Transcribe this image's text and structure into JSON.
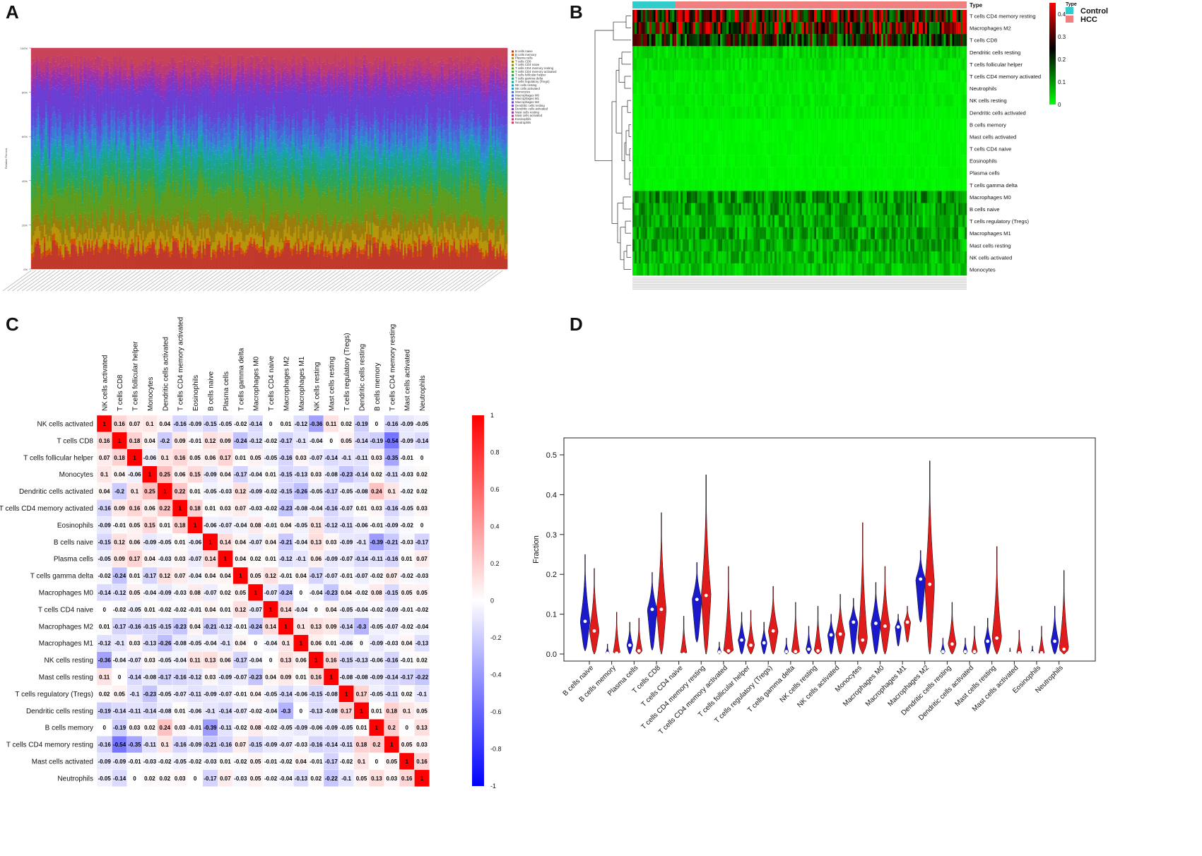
{
  "panels": {
    "a": "A",
    "b": "B",
    "c": "C",
    "d": "D"
  },
  "colors": {
    "corr_neg": "#0000ff",
    "corr_pos": "#ff0000",
    "violin_control": "#1a1acc",
    "violin_hcc": "#e01b1b",
    "heat_low": "#00ff00",
    "heat_mid": "#000000",
    "heat_high": "#ff0000",
    "type_control": "#33cccc",
    "type_hcc": "#f08080"
  },
  "cell_types": [
    "B cells naive",
    "B cells memory",
    "Plasma cells",
    "T cells CD8",
    "T cells CD4 naive",
    "T cells CD4 memory resting",
    "T cells CD4 memory activated",
    "T cells follicular helper",
    "T cells gamma delta",
    "T cells regulatory (Tregs)",
    "NK cells resting",
    "NK cells activated",
    "Monocytes",
    "Macrophages M0",
    "Macrophages M1",
    "Macrophages M2",
    "Dendritic cells resting",
    "Dendritic cells activated",
    "Mast cells resting",
    "Mast cells activated",
    "Eosinophils",
    "Neutrophils"
  ],
  "chart_data": [
    {
      "panel": "A",
      "type": "bar",
      "stacked": true,
      "ylabel": "Relative Percent",
      "yticks": [
        "0%",
        "20%",
        "40%",
        "60%",
        "80%",
        "100%"
      ],
      "legend": [
        "B cells naive",
        "B cells memory",
        "Plasma cells",
        "T cells CD8",
        "T cells CD4 naive",
        "T cells CD4 memory resting",
        "T cells CD4 memory activated",
        "T cells follicular helper",
        "T cells gamma delta",
        "T cells regulatory (Tregs)",
        "NK cells resting",
        "NK cells activated",
        "Monocytes",
        "Macrophages M0",
        "Macrophages M1",
        "Macrophages M2",
        "Dendritic cells resting",
        "Dendritic cells activated",
        "Mast cells resting",
        "Mast cells activated",
        "Eosinophils",
        "Neutrophils"
      ],
      "legend_colors": [
        "#c0392b",
        "#d35400",
        "#b7950b",
        "#9a7d0a",
        "#7d8f10",
        "#5e9c1e",
        "#3fa33a",
        "#2aa55a",
        "#1fa47a",
        "#1aa39a",
        "#1c9fb8",
        "#2a8fcc",
        "#3a7bd5",
        "#4a63d8",
        "#5a4ed8",
        "#6b3fd3",
        "#7d36c8",
        "#8e33b8",
        "#a033a4",
        "#b0368c",
        "#bd3b72",
        "#c84258"
      ]
    },
    {
      "panel": "B",
      "type": "heatmap",
      "annotation_label": "Type",
      "legend_title": "Type",
      "groups": [
        "Control",
        "HCC"
      ],
      "scale_ticks": [
        "0",
        "0.1",
        "0.2",
        "0.3",
        "0.4"
      ],
      "rows": [
        "T cells CD4 memory resting",
        "Macrophages M2",
        "T cells CD8",
        "Dendritic cells resting",
        "T cells follicular helper",
        "T cells CD4 memory activated",
        "Neutrophils",
        "NK cells resting",
        "Dendritic cells activated",
        "B cells memory",
        "Mast cells activated",
        "T cells CD4 naive",
        "Eosinophils",
        "Plasma cells",
        "T cells gamma delta",
        "Macrophages M0",
        "B cells naive",
        "T cells regulatory (Tregs)",
        "Macrophages M1",
        "Mast cells resting",
        "NK cells activated",
        "Monocytes"
      ]
    },
    {
      "panel": "C",
      "type": "heatmap",
      "title": "",
      "labels": [
        "NK cells activated",
        "T cells CD8",
        "T cells follicular helper",
        "Monocytes",
        "Dendritic cells activated",
        "T cells CD4 memory activated",
        "Eosinophils",
        "B cells naive",
        "Plasma cells",
        "T cells gamma delta",
        "Macrophages M0",
        "T cells CD4 naive",
        "Macrophages M2",
        "Macrophages M1",
        "NK cells resting",
        "Mast cells resting",
        "T cells regulatory (Tregs)",
        "Dendritic cells resting",
        "B cells memory",
        "T cells CD4 memory resting",
        "Mast cells activated",
        "Neutrophils"
      ],
      "colorbar_ticks": [
        "1",
        "0.8",
        "0.6",
        "0.4",
        "0.2",
        "0",
        "-0.2",
        "-0.4",
        "-0.6",
        "-0.8",
        "-1"
      ],
      "matrix": [
        [
          "1",
          "0.16",
          "0.07",
          "0.1",
          "0.04",
          "-0.16",
          "-0.09",
          "-0.15",
          "-0.05",
          "-0.02",
          "-0.14",
          "0",
          "0.01",
          "-0.12",
          "-0.36",
          "0.11",
          "0.02",
          "-0.19",
          "0",
          "-0.16",
          "-0.09",
          "-0.05"
        ],
        [
          "0.16",
          "1",
          "0.18",
          "0.04",
          "-0.2",
          "0.09",
          "-0.01",
          "0.12",
          "0.09",
          "-0.24",
          "-0.12",
          "-0.02",
          "-0.17",
          "-0.1",
          "-0.04",
          "0",
          "0.05",
          "-0.14",
          "-0.19",
          "-0.54",
          "-0.09",
          "-0.14"
        ],
        [
          "0.07",
          "0.18",
          "1",
          "-0.06",
          "0.1",
          "0.16",
          "0.05",
          "0.06",
          "0.17",
          "0.01",
          "0.05",
          "-0.05",
          "-0.16",
          "0.03",
          "-0.07",
          "-0.14",
          "-0.1",
          "-0.11",
          "0.03",
          "-0.35",
          "-0.01",
          "0"
        ],
        [
          "0.1",
          "0.04",
          "-0.06",
          "1",
          "0.25",
          "0.06",
          "0.15",
          "-0.09",
          "0.04",
          "-0.17",
          "-0.04",
          "0.01",
          "-0.15",
          "-0.13",
          "0.03",
          "-0.08",
          "-0.23",
          "-0.14",
          "0.02",
          "-0.11",
          "-0.03",
          "0.02"
        ],
        [
          "0.04",
          "-0.2",
          "0.1",
          "0.25",
          "1",
          "0.22",
          "0.01",
          "-0.05",
          "-0.03",
          "0.12",
          "-0.09",
          "-0.02",
          "-0.15",
          "-0.26",
          "-0.05",
          "-0.17",
          "-0.05",
          "-0.08",
          "0.24",
          "0.1",
          "-0.02",
          "0.02"
        ],
        [
          "-0.16",
          "0.09",
          "0.16",
          "0.06",
          "0.22",
          "1",
          "0.18",
          "0.01",
          "0.03",
          "0.07",
          "-0.03",
          "-0.02",
          "-0.23",
          "-0.08",
          "-0.04",
          "-0.16",
          "-0.07",
          "0.01",
          "0.03",
          "-0.16",
          "-0.05",
          "0.03"
        ],
        [
          "-0.09",
          "-0.01",
          "0.05",
          "0.15",
          "0.01",
          "0.18",
          "1",
          "-0.06",
          "-0.07",
          "-0.04",
          "0.08",
          "-0.01",
          "0.04",
          "-0.05",
          "0.11",
          "-0.12",
          "-0.11",
          "-0.06",
          "-0.01",
          "-0.09",
          "-0.02",
          "0"
        ],
        [
          "-0.15",
          "0.12",
          "0.06",
          "-0.09",
          "-0.05",
          "0.01",
          "-0.06",
          "1",
          "0.14",
          "0.04",
          "-0.07",
          "0.04",
          "-0.21",
          "-0.04",
          "0.13",
          "0.03",
          "-0.09",
          "-0.1",
          "-0.39",
          "-0.21",
          "-0.03",
          "-0.17"
        ],
        [
          "-0.05",
          "0.09",
          "0.17",
          "0.04",
          "-0.03",
          "0.03",
          "-0.07",
          "0.14",
          "1",
          "0.04",
          "0.02",
          "0.01",
          "-0.12",
          "-0.1",
          "0.06",
          "-0.09",
          "-0.07",
          "-0.14",
          "-0.11",
          "-0.16",
          "0.01",
          "0.07"
        ],
        [
          "-0.02",
          "-0.24",
          "0.01",
          "-0.17",
          "0.12",
          "0.07",
          "-0.04",
          "0.04",
          "0.04",
          "1",
          "0.05",
          "0.12",
          "-0.01",
          "0.04",
          "-0.17",
          "-0.07",
          "-0.01",
          "-0.07",
          "-0.02",
          "0.07",
          "-0.02",
          "-0.03"
        ],
        [
          "-0.14",
          "-0.12",
          "0.05",
          "-0.04",
          "-0.09",
          "-0.03",
          "0.08",
          "-0.07",
          "0.02",
          "0.05",
          "1",
          "-0.07",
          "-0.24",
          "0",
          "-0.04",
          "-0.23",
          "0.04",
          "-0.02",
          "0.08",
          "-0.15",
          "0.05",
          "0.05"
        ],
        [
          "0",
          "-0.02",
          "-0.05",
          "0.01",
          "-0.02",
          "-0.02",
          "-0.01",
          "0.04",
          "0.01",
          "0.12",
          "-0.07",
          "1",
          "0.14",
          "-0.04",
          "0",
          "0.04",
          "-0.05",
          "-0.04",
          "-0.02",
          "-0.09",
          "-0.01",
          "-0.02"
        ],
        [
          "0.01",
          "-0.17",
          "-0.16",
          "-0.15",
          "-0.15",
          "-0.23",
          "0.04",
          "-0.21",
          "-0.12",
          "-0.01",
          "-0.24",
          "0.14",
          "1",
          "0.1",
          "0.13",
          "0.09",
          "-0.14",
          "-0.3",
          "-0.05",
          "-0.07",
          "-0.02",
          "-0.04"
        ],
        [
          "-0.12",
          "-0.1",
          "0.03",
          "-0.13",
          "-0.26",
          "-0.08",
          "-0.05",
          "-0.04",
          "-0.1",
          "0.04",
          "0",
          "-0.04",
          "0.1",
          "1",
          "0.06",
          "0.01",
          "-0.06",
          "0",
          "-0.09",
          "-0.03",
          "0.04",
          "-0.13"
        ],
        [
          "-0.36",
          "-0.04",
          "-0.07",
          "0.03",
          "-0.05",
          "-0.04",
          "0.11",
          "0.13",
          "0.06",
          "-0.17",
          "-0.04",
          "0",
          "0.13",
          "0.06",
          "1",
          "0.16",
          "-0.15",
          "-0.13",
          "-0.06",
          "-0.16",
          "-0.01",
          "0.02"
        ],
        [
          "0.11",
          "0",
          "-0.14",
          "-0.08",
          "-0.17",
          "-0.16",
          "-0.12",
          "0.03",
          "-0.09",
          "-0.07",
          "-0.23",
          "0.04",
          "0.09",
          "0.01",
          "0.16",
          "1",
          "-0.08",
          "-0.08",
          "-0.09",
          "-0.14",
          "-0.17",
          "-0.22"
        ],
        [
          "0.02",
          "0.05",
          "-0.1",
          "-0.23",
          "-0.05",
          "-0.07",
          "-0.11",
          "-0.09",
          "-0.07",
          "-0.01",
          "0.04",
          "-0.05",
          "-0.14",
          "-0.06",
          "-0.15",
          "-0.08",
          "1",
          "0.17",
          "-0.05",
          "-0.11",
          "0.02",
          "-0.1"
        ],
        [
          "-0.19",
          "-0.14",
          "-0.11",
          "-0.14",
          "-0.08",
          "0.01",
          "-0.06",
          "-0.1",
          "-0.14",
          "-0.07",
          "-0.02",
          "-0.04",
          "-0.3",
          "0",
          "-0.13",
          "-0.08",
          "0.17",
          "1",
          "0.01",
          "0.18",
          "0.1",
          "0.05"
        ],
        [
          "0",
          "-0.19",
          "0.03",
          "0.02",
          "0.24",
          "0.03",
          "-0.01",
          "-0.39",
          "-0.11",
          "-0.02",
          "0.08",
          "-0.02",
          "-0.05",
          "-0.09",
          "-0.06",
          "-0.09",
          "-0.05",
          "0.01",
          "1",
          "0.2",
          "0",
          "0.13"
        ],
        [
          "-0.16",
          "-0.54",
          "-0.35",
          "-0.11",
          "0.1",
          "-0.16",
          "-0.09",
          "-0.21",
          "-0.16",
          "0.07",
          "-0.15",
          "-0.09",
          "-0.07",
          "-0.03",
          "-0.16",
          "-0.14",
          "-0.11",
          "0.18",
          "0.2",
          "1",
          "0.05",
          "0.03"
        ],
        [
          "-0.09",
          "-0.09",
          "-0.01",
          "-0.03",
          "-0.02",
          "-0.05",
          "-0.02",
          "-0.03",
          "0.01",
          "-0.02",
          "0.05",
          "-0.01",
          "-0.02",
          "0.04",
          "-0.01",
          "-0.17",
          "-0.02",
          "0.1",
          "0",
          "0.05",
          "1",
          "0.16"
        ],
        [
          "-0.05",
          "-0.14",
          "0",
          "0.02",
          "0.02",
          "0.03",
          "0",
          "-0.17",
          "0.07",
          "-0.03",
          "0.05",
          "-0.02",
          "-0.04",
          "-0.13",
          "0.02",
          "-0.22",
          "-0.1",
          "0.05",
          "0.13",
          "0.03",
          "0.16",
          "1"
        ]
      ]
    },
    {
      "panel": "D",
      "type": "violin",
      "ylabel": "Fraction",
      "ylim": [
        0,
        0.5
      ],
      "yticks": [
        "0.0",
        "0.1",
        "0.2",
        "0.3",
        "0.4",
        "0.5"
      ],
      "groups": [
        "Control",
        "HCC"
      ],
      "categories": [
        "B cells naive",
        "B cells memory",
        "Plasma cells",
        "T cells CD8",
        "T cells CD4 naive",
        "T cells CD4 memory resting",
        "T cells CD4 memory activated",
        "T cells follicular helper",
        "T cells regulatory (Tregs)",
        "T cells gamma delta",
        "NK cells resting",
        "NK cells activated",
        "Monocytes",
        "Macrophages M0",
        "Macrophages M1",
        "Macrophages M2",
        "Dendritic cells resting",
        "Dendritic cells activated",
        "Mast cells resting",
        "Mast cells activated",
        "Eosinophils",
        "Neutrophils"
      ],
      "series": [
        {
          "name": "Control",
          "median": [
            0.082,
            0.002,
            0.022,
            0.112,
            0.0,
            0.137,
            0.005,
            0.035,
            0.028,
            0.006,
            0.012,
            0.048,
            0.08,
            0.077,
            0.068,
            0.188,
            0.006,
            0.006,
            0.032,
            0.002,
            0.003,
            0.032
          ],
          "max": [
            0.25,
            0.025,
            0.08,
            0.205,
            0.0,
            0.23,
            0.03,
            0.105,
            0.08,
            0.04,
            0.07,
            0.1,
            0.14,
            0.18,
            0.1,
            0.26,
            0.04,
            0.04,
            0.09,
            0.015,
            0.02,
            0.12
          ],
          "min": [
            0.008,
            0.0,
            0.0,
            0.01,
            0.0,
            0.03,
            0.0,
            0.0,
            0.0,
            0.0,
            0.0,
            0.0,
            0.0,
            0.0,
            0.02,
            0.08,
            0.0,
            0.0,
            0.0,
            0.0,
            0.0,
            0.0
          ]
        },
        {
          "name": "HCC",
          "median": [
            0.058,
            0.002,
            0.008,
            0.112,
            0.0,
            0.147,
            0.008,
            0.022,
            0.058,
            0.006,
            0.008,
            0.05,
            0.035,
            0.07,
            0.08,
            0.175,
            0.025,
            0.006,
            0.04,
            0.003,
            0.003,
            0.012
          ],
          "max": [
            0.215,
            0.105,
            0.09,
            0.355,
            0.095,
            0.45,
            0.22,
            0.11,
            0.17,
            0.13,
            0.12,
            0.15,
            0.33,
            0.22,
            0.12,
            0.485,
            0.13,
            0.07,
            0.27,
            0.06,
            0.07,
            0.21
          ],
          "min": [
            0.0,
            0.0,
            0.0,
            0.0,
            0.0,
            0.0,
            0.0,
            0.0,
            0.0,
            0.0,
            0.0,
            0.0,
            0.0,
            0.0,
            0.03,
            0.0,
            0.0,
            0.0,
            0.0,
            0.0,
            0.0,
            0.0
          ]
        }
      ]
    }
  ]
}
